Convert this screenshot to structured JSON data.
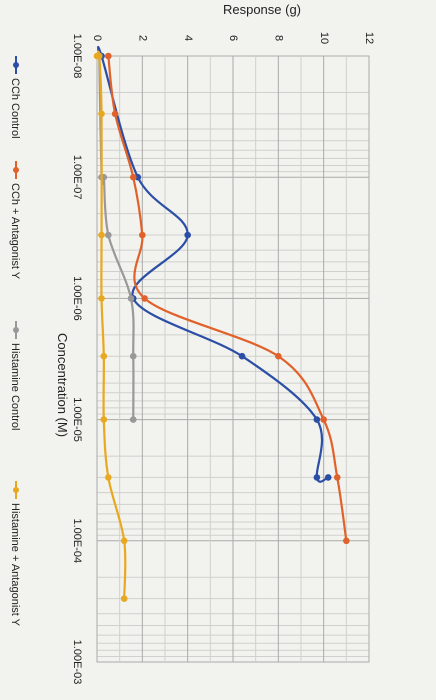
{
  "chart_data": {
    "type": "line",
    "rotated": "90deg-clockwise",
    "title": "",
    "xlabel": "Concentration (M)",
    "ylabel": "Response (g)",
    "x_scale": "log",
    "xlim": [
      1e-08,
      0.001
    ],
    "ylim": [
      0,
      12
    ],
    "x_ticks": [
      "1.00E-08",
      "1.00E-07",
      "1.00E-06",
      "1.00E-05",
      "1.00E-04",
      "1.00E-03"
    ],
    "y_ticks": [
      "0",
      "2",
      "4",
      "6",
      "8",
      "10",
      "12"
    ],
    "grid": true,
    "legend_position": "bottom",
    "series": [
      {
        "name": "CCh Control",
        "color": "#2b4fa6",
        "x": [
          1e-08,
          1e-08,
          1e-07,
          3e-07,
          1e-06,
          3e-06,
          1e-05,
          3e-05,
          3e-05
        ],
        "y": [
          0.1,
          0.2,
          1.8,
          4.0,
          1.6,
          6.4,
          9.7,
          9.7,
          10.2
        ]
      },
      {
        "name": "CCh + Antagonist Y",
        "color": "#e0622a",
        "x": [
          1e-08,
          3e-08,
          1e-07,
          3e-07,
          1e-06,
          3e-06,
          1e-05,
          3e-05,
          0.0001
        ],
        "y": [
          0.5,
          0.8,
          1.6,
          2.0,
          2.1,
          8.0,
          10.0,
          10.6,
          11.0
        ]
      },
      {
        "name": "Histamine Control",
        "color": "#999999",
        "x": [
          1e-08,
          1e-07,
          1e-07,
          3e-07,
          1e-06,
          3e-06,
          1e-05
        ],
        "y": [
          0.1,
          0.2,
          0.3,
          0.5,
          1.5,
          1.6,
          1.6
        ]
      },
      {
        "name": "Histamine + Antagonist Y",
        "color": "#e8a820",
        "x": [
          1e-08,
          1e-08,
          3e-08,
          3e-07,
          1e-06,
          3e-06,
          1e-05,
          3e-05,
          0.0001,
          0.0003
        ],
        "y": [
          0,
          0.1,
          0.2,
          0.2,
          0.2,
          0.3,
          0.3,
          0.5,
          1.2,
          1.2
        ]
      }
    ]
  }
}
